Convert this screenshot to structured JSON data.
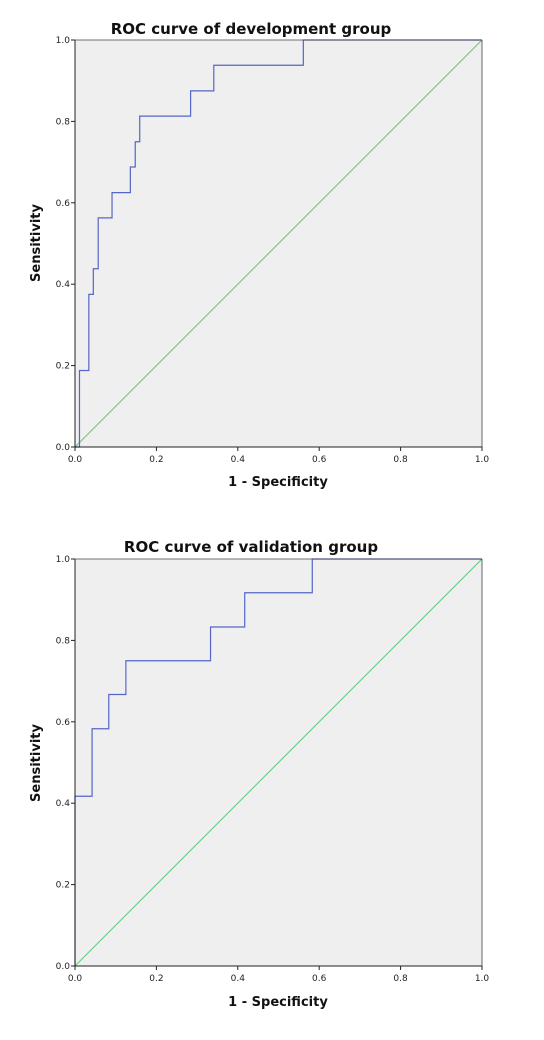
{
  "chart_data": [
    {
      "type": "line",
      "title": "ROC curve of development group",
      "xlabel": "1 - Specificity",
      "ylabel": "Sensitivity",
      "xlim": [
        0,
        1
      ],
      "ylim": [
        0,
        1
      ],
      "x_ticks": [
        "0.0",
        "0.2",
        "0.4",
        "0.6",
        "0.8",
        "1.0"
      ],
      "y_ticks": [
        "0.0",
        "0.2",
        "0.4",
        "0.6",
        "0.8",
        "1.0"
      ],
      "grid": false,
      "series": [
        {
          "color": "#5566c8",
          "style": "step",
          "points": [
            [
              0,
              0
            ],
            [
              0.011,
              0
            ],
            [
              0.011,
              0.188
            ],
            [
              0.034,
              0.188
            ],
            [
              0.034,
              0.375
            ],
            [
              0.045,
              0.375
            ],
            [
              0.045,
              0.438
            ],
            [
              0.057,
              0.438
            ],
            [
              0.057,
              0.563
            ],
            [
              0.091,
              0.563
            ],
            [
              0.091,
              0.625
            ],
            [
              0.136,
              0.625
            ],
            [
              0.136,
              0.688
            ],
            [
              0.148,
              0.688
            ],
            [
              0.148,
              0.75
            ],
            [
              0.159,
              0.75
            ],
            [
              0.159,
              0.813
            ],
            [
              0.284,
              0.813
            ],
            [
              0.284,
              0.875
            ],
            [
              0.341,
              0.875
            ],
            [
              0.341,
              0.938
            ],
            [
              0.561,
              0.938
            ],
            [
              0.561,
              1
            ],
            [
              1,
              1
            ]
          ]
        },
        {
          "color": "#66cc77",
          "style": "reference",
          "points": [
            [
              0,
              0
            ],
            [
              1,
              1
            ]
          ]
        }
      ]
    },
    {
      "type": "line",
      "title": "ROC curve of validation group",
      "xlabel": "1 - Specificity",
      "ylabel": "Sensitivity",
      "xlim": [
        0,
        1
      ],
      "ylim": [
        0,
        1
      ],
      "x_ticks": [
        "0.0",
        "0.2",
        "0.4",
        "0.6",
        "0.8",
        "1.0"
      ],
      "y_ticks": [
        "0.0",
        "0.2",
        "0.4",
        "0.6",
        "0.8",
        "1.0"
      ],
      "grid": false,
      "series": [
        {
          "color": "#5566c8",
          "style": "step",
          "points": [
            [
              0,
              0
            ],
            [
              0,
              0.417
            ],
            [
              0.042,
              0.417
            ],
            [
              0.042,
              0.583
            ],
            [
              0.083,
              0.583
            ],
            [
              0.083,
              0.667
            ],
            [
              0.125,
              0.667
            ],
            [
              0.125,
              0.75
            ],
            [
              0.333,
              0.75
            ],
            [
              0.333,
              0.833
            ],
            [
              0.417,
              0.833
            ],
            [
              0.417,
              0.917
            ],
            [
              0.583,
              0.917
            ],
            [
              0.583,
              1
            ],
            [
              1,
              1
            ]
          ]
        },
        {
          "color": "#66cc77",
          "style": "reference",
          "points": [
            [
              0,
              0
            ],
            [
              1,
              1
            ]
          ]
        }
      ]
    }
  ]
}
